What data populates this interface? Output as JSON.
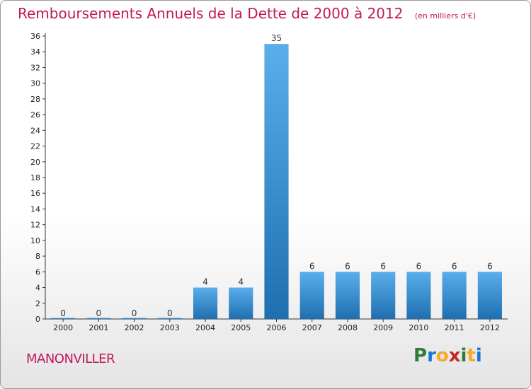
{
  "header": {
    "title": "Remboursements Annuels de la Dette de 2000 à 2012",
    "subtitle": "(en milliers d'€)"
  },
  "footer": {
    "commune": "MANONVILLER",
    "logo": {
      "letters": [
        "P",
        "r",
        "o",
        "x",
        "i",
        "t",
        "i"
      ],
      "colors": [
        "#2e7d32",
        "#1976d2",
        "#f9a825",
        "#c62828",
        "#2e7d32",
        "#f9a825",
        "#1976d2"
      ]
    }
  },
  "chart_data": {
    "type": "bar",
    "title": "Remboursements Annuels de la Dette de 2000 à 2012",
    "subtitle": "(en milliers d'€)",
    "categories": [
      "2000",
      "2001",
      "2002",
      "2003",
      "2004",
      "2005",
      "2006",
      "2007",
      "2008",
      "2009",
      "2010",
      "2011",
      "2012"
    ],
    "values": [
      0,
      0,
      0,
      0,
      4,
      4,
      35,
      6,
      6,
      6,
      6,
      6,
      6
    ],
    "data_labels": [
      "0",
      "0",
      "0",
      "0",
      "4",
      "4",
      "35",
      "6",
      "6",
      "6",
      "6",
      "6",
      "6"
    ],
    "ylim": [
      0,
      36
    ],
    "yticks": [
      0,
      2,
      4,
      6,
      8,
      10,
      12,
      14,
      16,
      18,
      20,
      22,
      24,
      26,
      28,
      30,
      32,
      34,
      36
    ],
    "grid": false,
    "legend": "none",
    "colors": {
      "bar_light": "#5aaeea",
      "bar_dark": "#1f6fb0",
      "axis": "#333333"
    }
  }
}
